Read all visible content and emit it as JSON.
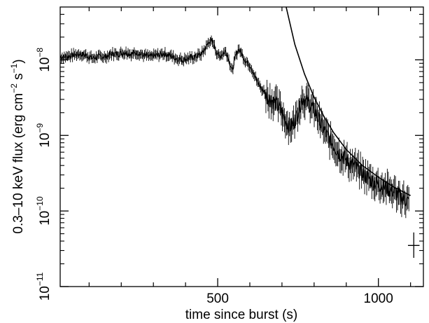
{
  "chart_data": {
    "type": "line",
    "xlabel": "time since burst (s)",
    "ylabel": {
      "main": "0.3–10 keV flux (erg cm",
      "sup1": "−2",
      "mid": " s",
      "sup2": "−1",
      "end": ")"
    },
    "xlim": [
      10,
      1140
    ],
    "ylim": [
      1e-11,
      5e-08
    ],
    "y_scale": "log",
    "x_ticks": [
      {
        "value": 500,
        "label": "500"
      },
      {
        "value": 1000,
        "label": "1000"
      }
    ],
    "x_minor_ticks": [
      100,
      200,
      300,
      400,
      600,
      700,
      800,
      900,
      1100
    ],
    "y_ticks": [
      {
        "value": 1e-11,
        "base": "10",
        "exp": "−11"
      },
      {
        "value": 1e-10,
        "base": "10",
        "exp": "−10"
      },
      {
        "value": 1e-09,
        "base": "10",
        "exp": "−9"
      },
      {
        "value": 1e-08,
        "base": "10",
        "exp": "−8"
      }
    ],
    "series": [
      {
        "kind": "light_curve_with_error_bars",
        "x": [
          10,
          30,
          50,
          70,
          90,
          110,
          130,
          150,
          170,
          190,
          210,
          230,
          250,
          270,
          290,
          310,
          330,
          350,
          370,
          390,
          410,
          430,
          450,
          465,
          475,
          485,
          495,
          505,
          515,
          525,
          535,
          545,
          555,
          565,
          575,
          585,
          595,
          605,
          615,
          625,
          635,
          645,
          655,
          665,
          675,
          685,
          695,
          705,
          715,
          725,
          735,
          745,
          755,
          765,
          775,
          785,
          795,
          805,
          815,
          825,
          835,
          845,
          855,
          865,
          875,
          885,
          895,
          905,
          915,
          925,
          935,
          945,
          955,
          965,
          975,
          985,
          995,
          1005,
          1015,
          1025,
          1035,
          1045,
          1055,
          1065,
          1075,
          1085,
          1095
        ],
        "y": [
          1.1e-08,
          1.1e-08,
          1.15e-08,
          1.2e-08,
          1.15e-08,
          1.05e-08,
          1.1e-08,
          1.1e-08,
          1.2e-08,
          1.2e-08,
          1.25e-08,
          1.2e-08,
          1.25e-08,
          1.15e-08,
          1.1e-08,
          1.15e-08,
          1.2e-08,
          1.15e-08,
          1.05e-08,
          1e-08,
          1.05e-08,
          1.1e-08,
          1.2e-08,
          1.5e-08,
          1.8e-08,
          1.7e-08,
          1.3e-08,
          1.1e-08,
          1.2e-08,
          1.3e-08,
          1e-08,
          7e-09,
          1.1e-08,
          1.4e-08,
          1.2e-08,
          1e-08,
          9e-09,
          8e-09,
          6e-09,
          5e-09,
          4.2e-09,
          3.8e-09,
          3.2e-09,
          3e-09,
          2.8e-09,
          2.5e-09,
          2.2e-09,
          1.8e-09,
          1.5e-09,
          1.3e-09,
          1.4e-09,
          1.8e-09,
          2.5e-09,
          3.2e-09,
          2.8e-09,
          2.6e-09,
          2.3e-09,
          2e-09,
          1.6e-09,
          1.3e-09,
          1.1e-09,
          9e-10,
          8e-10,
          7e-10,
          6e-10,
          5.5e-10,
          5e-10,
          4.5e-10,
          4.2e-10,
          4e-10,
          3.6e-10,
          3.3e-10,
          3e-10,
          2.8e-10,
          2.6e-10,
          2.4e-10,
          2.3e-10,
          2.2e-10,
          2.1e-10,
          2e-10,
          1.9e-10,
          1.85e-10,
          1.7e-10,
          1.6e-10,
          1.5e-10,
          1.4e-10,
          1.3e-10
        ]
      },
      {
        "kind": "power_law_model",
        "x": [
          713,
          740,
          770,
          800,
          830,
          860,
          900,
          950,
          1000,
          1050,
          1100
        ],
        "y": [
          5e-08,
          1.6e-08,
          6.5e-09,
          3.2e-09,
          1.8e-09,
          1.1e-09,
          6.5e-10,
          4e-10,
          2.8e-10,
          2.05e-10,
          1.6e-10
        ]
      }
    ],
    "typical_error_bar": {
      "x": 1110,
      "y": 3.5e-11,
      "x_err": 18,
      "y_low": 2.4e-11,
      "y_high": 5.2e-11
    },
    "grid": false,
    "legend": "none"
  }
}
